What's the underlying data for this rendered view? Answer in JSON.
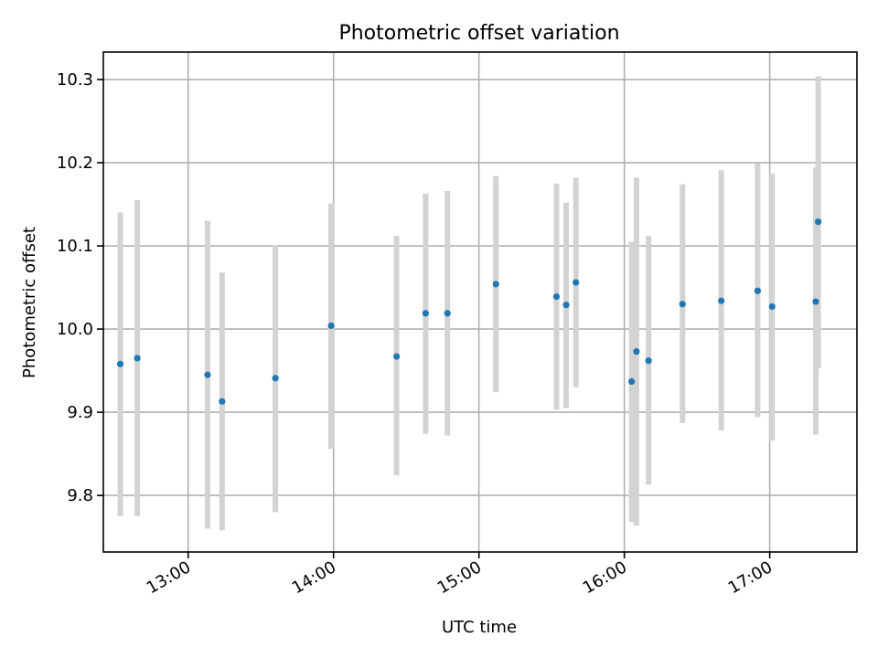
{
  "chart_data": {
    "type": "scatter",
    "title": "Photometric offset variation",
    "xlabel": "UTC time",
    "ylabel": "Photometric offset",
    "xlim": [
      "12:25",
      "17:36"
    ],
    "ylim": [
      9.732,
      10.333
    ],
    "x_ticks": [
      "13:00",
      "14:00",
      "15:00",
      "16:00",
      "17:00"
    ],
    "y_ticks": [
      "9.8",
      "9.9",
      "10.0",
      "10.1",
      "10.2",
      "10.3"
    ],
    "grid": true,
    "series": [
      {
        "error_bars": "vertical",
        "colors": {
          "point": "#1f77b4",
          "error_bar": "#d3d3d3"
        },
        "points": [
          {
            "x": "12:32",
            "y": 9.958,
            "ylow": 9.775,
            "yhigh": 10.14
          },
          {
            "x": "12:39",
            "y": 9.965,
            "ylow": 9.775,
            "yhigh": 10.155
          },
          {
            "x": "13:08",
            "y": 9.945,
            "ylow": 9.76,
            "yhigh": 10.13
          },
          {
            "x": "13:14",
            "y": 9.913,
            "ylow": 9.758,
            "yhigh": 10.068
          },
          {
            "x": "13:36",
            "y": 9.941,
            "ylow": 9.78,
            "yhigh": 10.101
          },
          {
            "x": "13:59",
            "y": 10.004,
            "ylow": 9.856,
            "yhigh": 10.151
          },
          {
            "x": "14:26",
            "y": 9.967,
            "ylow": 9.824,
            "yhigh": 10.112
          },
          {
            "x": "14:38",
            "y": 10.019,
            "ylow": 9.874,
            "yhigh": 10.163
          },
          {
            "x": "14:47",
            "y": 10.019,
            "ylow": 9.872,
            "yhigh": 10.166
          },
          {
            "x": "15:07",
            "y": 10.054,
            "ylow": 9.924,
            "yhigh": 10.184
          },
          {
            "x": "15:32",
            "y": 10.039,
            "ylow": 9.903,
            "yhigh": 10.175
          },
          {
            "x": "15:36",
            "y": 10.029,
            "ylow": 9.905,
            "yhigh": 10.152
          },
          {
            "x": "15:40",
            "y": 10.056,
            "ylow": 9.93,
            "yhigh": 10.182
          },
          {
            "x": "16:03",
            "y": 9.937,
            "ylow": 9.768,
            "yhigh": 10.105
          },
          {
            "x": "16:05",
            "y": 9.973,
            "ylow": 9.764,
            "yhigh": 10.182
          },
          {
            "x": "16:10",
            "y": 9.962,
            "ylow": 9.813,
            "yhigh": 10.112
          },
          {
            "x": "16:24",
            "y": 10.03,
            "ylow": 9.887,
            "yhigh": 10.174
          },
          {
            "x": "16:40",
            "y": 10.034,
            "ylow": 9.878,
            "yhigh": 10.191
          },
          {
            "x": "16:55",
            "y": 10.046,
            "ylow": 9.894,
            "yhigh": 10.199
          },
          {
            "x": "17:01",
            "y": 10.027,
            "ylow": 9.866,
            "yhigh": 10.187
          },
          {
            "x": "17:19",
            "y": 10.033,
            "ylow": 9.873,
            "yhigh": 10.194
          },
          {
            "x": "17:20",
            "y": 10.129,
            "ylow": 9.953,
            "yhigh": 10.304
          }
        ]
      }
    ]
  }
}
